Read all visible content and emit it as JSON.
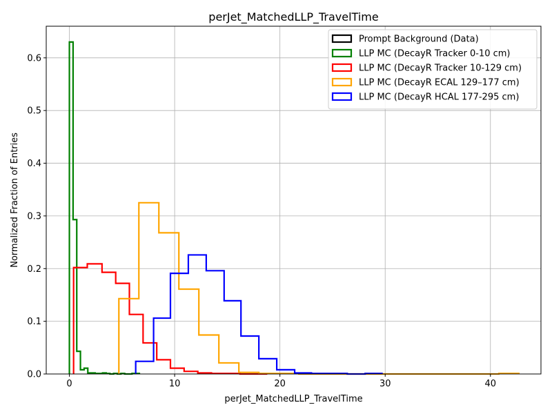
{
  "chart_data": {
    "type": "histogram-step",
    "title": "perJet_MatchedLLP_TravelTime",
    "xlabel": "perJet_MatchedLLP_TravelTime",
    "ylabel": "Normalized Fraction of Entries",
    "xlim": [
      -2.2,
      44.8
    ],
    "ylim": [
      0,
      0.66
    ],
    "xticks": [
      0,
      10,
      20,
      30,
      40
    ],
    "yticks": [
      0.0,
      0.1,
      0.2,
      0.3,
      0.4,
      0.5,
      0.6
    ],
    "xtick_labels": [
      "0",
      "10",
      "20",
      "30",
      "40"
    ],
    "ytick_labels": [
      "0.0",
      "0.1",
      "0.2",
      "0.3",
      "0.4",
      "0.5",
      "0.6"
    ],
    "grid": true,
    "legend_position": "top-right",
    "series": [
      {
        "name": "Prompt Background (Data)",
        "color": "#000000",
        "edges": [],
        "values": []
      },
      {
        "name": "LLP MC (DecayR Tracker 0-10 cm)",
        "color": "#008000",
        "edges": [
          0.0,
          0.35,
          0.7,
          1.05,
          1.4,
          1.75,
          2.1,
          2.45,
          2.8,
          3.15,
          3.5,
          3.85,
          4.2,
          4.55,
          4.9,
          5.25,
          5.6,
          5.95,
          6.3,
          6.65
        ],
        "values": [
          0.63,
          0.293,
          0.043,
          0.008,
          0.011,
          0.002,
          0.002,
          0.001,
          0.001,
          0.002,
          0.001,
          0.0,
          0.001,
          0.0,
          0.001,
          0.0,
          0.0,
          0.001,
          0.001
        ]
      },
      {
        "name": "LLP MC (DecayR Tracker 10-129 cm)",
        "color": "#ff0000",
        "edges": [
          0.4,
          1.7,
          3.1,
          4.4,
          5.7,
          7.0,
          8.3,
          9.6,
          10.9,
          12.2,
          13.5,
          14.9,
          16.2,
          17.5,
          18.8
        ],
        "values": [
          0.202,
          0.209,
          0.193,
          0.172,
          0.113,
          0.059,
          0.027,
          0.011,
          0.005,
          0.002,
          0.001,
          0.001,
          0.0,
          0.0
        ]
      },
      {
        "name": "LLP MC (DecayR ECAL 129–177 cm)",
        "color": "#ffa500",
        "edges": [
          4.7,
          6.6,
          8.5,
          10.4,
          12.3,
          14.2,
          16.1,
          18.0,
          19.9,
          21.8,
          23.7,
          25.6,
          27.5,
          29.4,
          31.3,
          33.2,
          35.1,
          37.0,
          38.9,
          40.8,
          42.7
        ],
        "values": [
          0.143,
          0.325,
          0.268,
          0.161,
          0.074,
          0.021,
          0.003,
          0.001,
          0.001,
          0.0,
          0.0,
          0.0,
          0.0,
          0.0,
          0.0,
          0.0,
          0.0,
          0.0,
          0.0,
          0.001
        ]
      },
      {
        "name": "LLP MC (DecayR HCAL 177-295 cm)",
        "color": "#0000ff",
        "edges": [
          6.3,
          8.0,
          9.6,
          11.3,
          13.0,
          14.7,
          16.3,
          18.0,
          19.7,
          21.4,
          23.0,
          24.7,
          26.4,
          28.1,
          29.7
        ],
        "values": [
          0.024,
          0.106,
          0.191,
          0.226,
          0.196,
          0.139,
          0.072,
          0.029,
          0.008,
          0.002,
          0.001,
          0.001,
          0.0,
          0.001
        ]
      }
    ]
  }
}
